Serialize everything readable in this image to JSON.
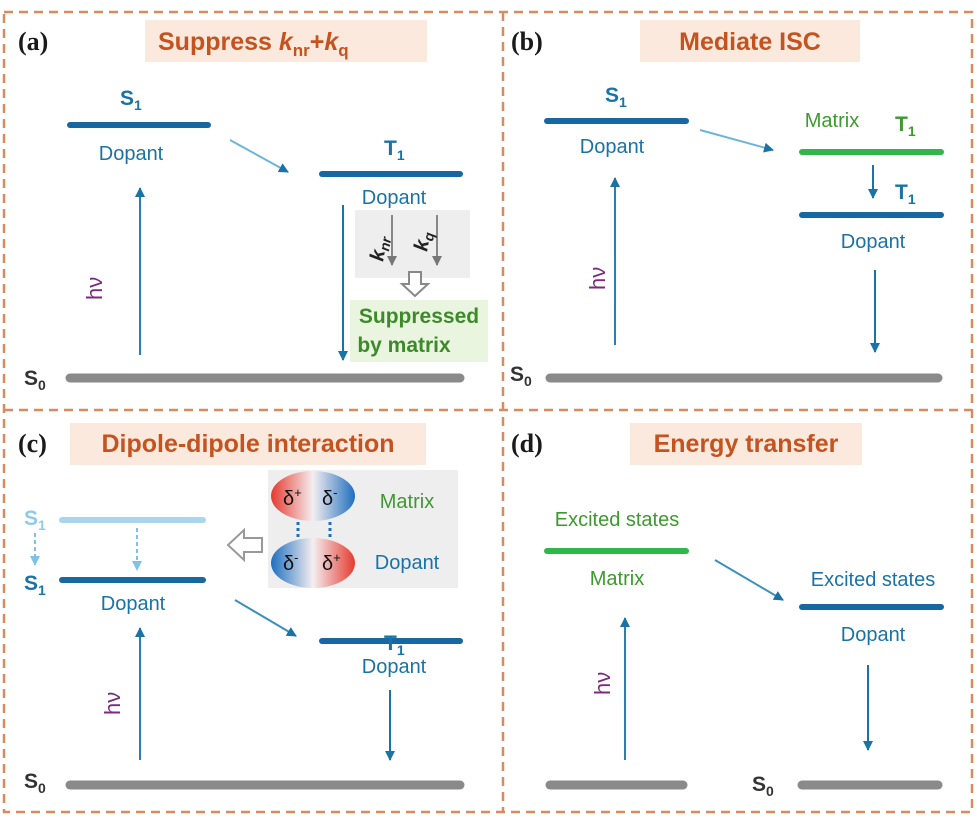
{
  "panels": [
    {
      "label": "(a)",
      "title": [
        "Suppress ",
        "k",
        "nr",
        "+",
        "k",
        "q"
      ],
      "s1": {
        "symbol": "S",
        "sub": "1"
      },
      "s1_caption": "Dopant",
      "t1": {
        "symbol": "T",
        "sub": "1"
      },
      "t1_caption": "Dopant",
      "k_nr": [
        "k",
        "nr"
      ],
      "k_q": [
        "k",
        "q"
      ],
      "note": [
        "Suppressed",
        "by matrix"
      ],
      "hv": "hν",
      "s0": {
        "symbol": "S",
        "sub": "0"
      }
    },
    {
      "label": "(b)",
      "title": "Mediate ISC",
      "s1": {
        "symbol": "S",
        "sub": "1"
      },
      "s1_caption": "Dopant",
      "matrix_caption": "Matrix",
      "matrix_t1": {
        "symbol": "T",
        "sub": "1"
      },
      "dopant_t1": {
        "symbol": "T",
        "sub": "1"
      },
      "dopant_caption": "Dopant",
      "hv": "hν",
      "s0": {
        "symbol": "S",
        "sub": "0"
      }
    },
    {
      "label": "(c)",
      "title": "Dipole-dipole interaction",
      "s1_before": {
        "symbol": "S",
        "sub": "1"
      },
      "s1": {
        "symbol": "S",
        "sub": "1"
      },
      "s1_caption": "Dopant",
      "t1": {
        "symbol": "T",
        "sub": "1"
      },
      "t1_caption": "Dopant",
      "matrix_dipole": {
        "left": [
          "δ",
          "+"
        ],
        "right": [
          "δ",
          "-"
        ],
        "caption": "Matrix"
      },
      "dopant_dipole": {
        "left": [
          "δ",
          "-"
        ],
        "right": [
          "δ",
          "+"
        ],
        "caption": "Dopant"
      },
      "hv": "hν",
      "s0": {
        "symbol": "S",
        "sub": "0"
      }
    },
    {
      "label": "(d)",
      "title": "Energy transfer",
      "matrix_state": "Excited states",
      "matrix_caption": "Matrix",
      "dopant_state": "Excited states",
      "dopant_caption": "Dopant",
      "hv": "hν",
      "s0": {
        "symbol": "S",
        "sub": "0"
      }
    }
  ]
}
